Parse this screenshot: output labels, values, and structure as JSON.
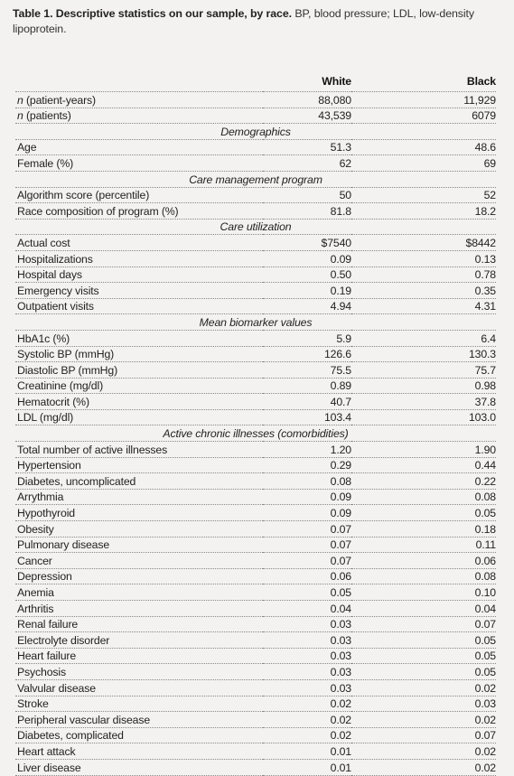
{
  "caption": {
    "title": "Table 1. Descriptive statistics on our sample, by race.",
    "text": " BP, blood pressure; LDL, low-density lipoprotein."
  },
  "columns": {
    "white": "White",
    "black": "Black"
  },
  "top_rows": [
    {
      "prefix": "n",
      "label": " (patient-years)",
      "white": "88,080",
      "black": "11,929"
    },
    {
      "prefix": "n",
      "label": " (patients)",
      "white": "43,539",
      "black": "6079"
    }
  ],
  "sections": [
    {
      "title": "Demographics",
      "rows": [
        {
          "label": "Age",
          "white": "51.3",
          "black": "48.6"
        },
        {
          "label": "Female (%)",
          "white": "62",
          "black": "69"
        }
      ]
    },
    {
      "title": "Care management program",
      "rows": [
        {
          "label": "Algorithm score (percentile)",
          "white": "50",
          "black": "52"
        },
        {
          "label": "Race composition of program (%)",
          "white": "81.8",
          "black": "18.2"
        }
      ]
    },
    {
      "title": "Care utilization",
      "rows": [
        {
          "label": "Actual cost",
          "white": "$7540",
          "black": "$8442"
        },
        {
          "label": "Hospitalizations",
          "white": "0.09",
          "black": "0.13"
        },
        {
          "label": "Hospital days",
          "white": "0.50",
          "black": "0.78"
        },
        {
          "label": "Emergency visits",
          "white": "0.19",
          "black": "0.35"
        },
        {
          "label": "Outpatient visits",
          "white": "4.94",
          "black": "4.31"
        }
      ]
    },
    {
      "title": "Mean biomarker values",
      "rows": [
        {
          "label": "HbA1c (%)",
          "white": "5.9",
          "black": "6.4"
        },
        {
          "label": "Systolic BP (mmHg)",
          "white": "126.6",
          "black": "130.3"
        },
        {
          "label": "Diastolic BP (mmHg)",
          "white": "75.5",
          "black": "75.7"
        },
        {
          "label": "Creatinine (mg/dl)",
          "white": "0.89",
          "black": "0.98"
        },
        {
          "label": "Hematocrit (%)",
          "white": "40.7",
          "black": "37.8"
        },
        {
          "label": "LDL (mg/dl)",
          "white": "103.4",
          "black": "103.0"
        }
      ]
    },
    {
      "title": "Active chronic illnesses (comorbidities)",
      "rows": [
        {
          "label": "Total number of active illnesses",
          "white": "1.20",
          "black": "1.90"
        },
        {
          "label": "Hypertension",
          "white": "0.29",
          "black": "0.44"
        },
        {
          "label": "Diabetes, uncomplicated",
          "white": "0.08",
          "black": "0.22"
        },
        {
          "label": "Arrythmia",
          "white": "0.09",
          "black": "0.08"
        },
        {
          "label": "Hypothyroid",
          "white": "0.09",
          "black": "0.05"
        },
        {
          "label": "Obesity",
          "white": "0.07",
          "black": "0.18"
        },
        {
          "label": "Pulmonary disease",
          "white": "0.07",
          "black": "0.11"
        },
        {
          "label": "Cancer",
          "white": "0.07",
          "black": "0.06"
        },
        {
          "label": "Depression",
          "white": "0.06",
          "black": "0.08"
        },
        {
          "label": "Anemia",
          "white": "0.05",
          "black": "0.10"
        },
        {
          "label": "Arthritis",
          "white": "0.04",
          "black": "0.04"
        },
        {
          "label": "Renal failure",
          "white": "0.03",
          "black": "0.07"
        },
        {
          "label": "Electrolyte disorder",
          "white": "0.03",
          "black": "0.05"
        },
        {
          "label": "Heart failure",
          "white": "0.03",
          "black": "0.05"
        },
        {
          "label": "Psychosis",
          "white": "0.03",
          "black": "0.05"
        },
        {
          "label": "Valvular disease",
          "white": "0.03",
          "black": "0.02"
        },
        {
          "label": "Stroke",
          "white": "0.02",
          "black": "0.03"
        },
        {
          "label": "Peripheral vascular disease",
          "white": "0.02",
          "black": "0.02"
        },
        {
          "label": "Diabetes, complicated",
          "white": "0.02",
          "black": "0.07"
        },
        {
          "label": "Heart attack",
          "white": "0.01",
          "black": "0.02"
        },
        {
          "label": "Liver disease",
          "white": "0.01",
          "black": "0.02"
        }
      ]
    }
  ]
}
